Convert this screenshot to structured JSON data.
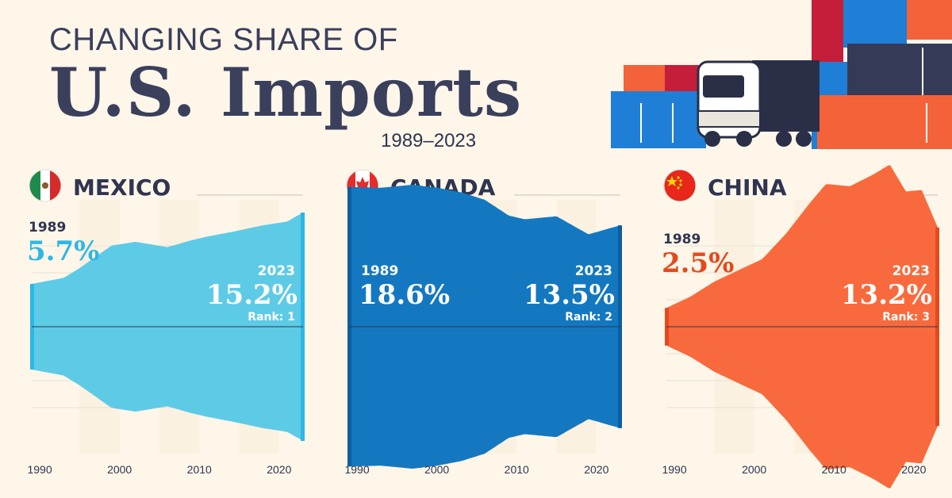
{
  "header": {
    "title_top": "CHANGING SHARE OF",
    "title_main": "U.S. Imports",
    "years": "1989–2023"
  },
  "colors": {
    "background": "#fdf6e9",
    "text": "#2f3550",
    "mexico": "#5ecbe6",
    "mexico_edge": "#2cb8e3",
    "canada": "#1478c0",
    "canada_edge": "#0d5f9e",
    "china": "#f86a3d",
    "china_edge": "#e34a1c"
  },
  "chart_data": [
    {
      "type": "area",
      "title": "MEXICO",
      "flag_icon": "mexico-flag-icon",
      "color_key": "mexico",
      "x": [
        1989,
        1993,
        1995,
        1999,
        2002,
        2006,
        2009,
        2011,
        2014,
        2018,
        2021,
        2023
      ],
      "values": [
        5.7,
        6.5,
        7.8,
        10.8,
        11.3,
        10.6,
        11.5,
        12.0,
        12.6,
        13.5,
        14.0,
        15.2
      ],
      "xticks": [
        "1990",
        "2000",
        "2010",
        "2020"
      ],
      "start_label": {
        "year": "1989",
        "value": "5.7%"
      },
      "end_label": {
        "year": "2023",
        "value": "15.2%",
        "rank": "Rank: 1"
      },
      "ylim": [
        -19,
        19
      ]
    },
    {
      "type": "area",
      "title": "CANADA",
      "flag_icon": "canada-flag-icon",
      "color_key": "canada",
      "x": [
        1989,
        1993,
        1997,
        2000,
        2003,
        2006,
        2009,
        2011,
        2015,
        2019,
        2021,
        2023
      ],
      "values": [
        18.6,
        18.5,
        18.9,
        18.5,
        17.9,
        16.9,
        14.8,
        14.3,
        14.7,
        12.3,
        12.9,
        13.5
      ],
      "xticks": [
        "1990",
        "2000",
        "2010",
        "2020"
      ],
      "start_label": {
        "year": "1989",
        "value": "18.6%"
      },
      "end_label": {
        "year": "2023",
        "value": "13.5%",
        "rank": "Rank: 2"
      },
      "ylim": [
        -19,
        19
      ]
    },
    {
      "type": "area",
      "title": "CHINA",
      "flag_icon": "china-flag-icon",
      "color_key": "china",
      "x": [
        1989,
        1992,
        1995,
        1998,
        2001,
        2004,
        2007,
        2009,
        2012,
        2015,
        2017,
        2019,
        2021,
        2023
      ],
      "values": [
        2.5,
        4.0,
        6.0,
        7.5,
        9.0,
        12.4,
        16.5,
        19.0,
        18.7,
        20.3,
        21.6,
        18.0,
        18.2,
        13.2
      ],
      "xticks": [
        "1990",
        "2000",
        "2010",
        "2020"
      ],
      "start_label": {
        "year": "1989",
        "value": "2.5%"
      },
      "end_label": {
        "year": "2023",
        "value": "13.2%",
        "rank": "Rank: 3"
      },
      "ylim": [
        -19,
        19
      ]
    }
  ]
}
